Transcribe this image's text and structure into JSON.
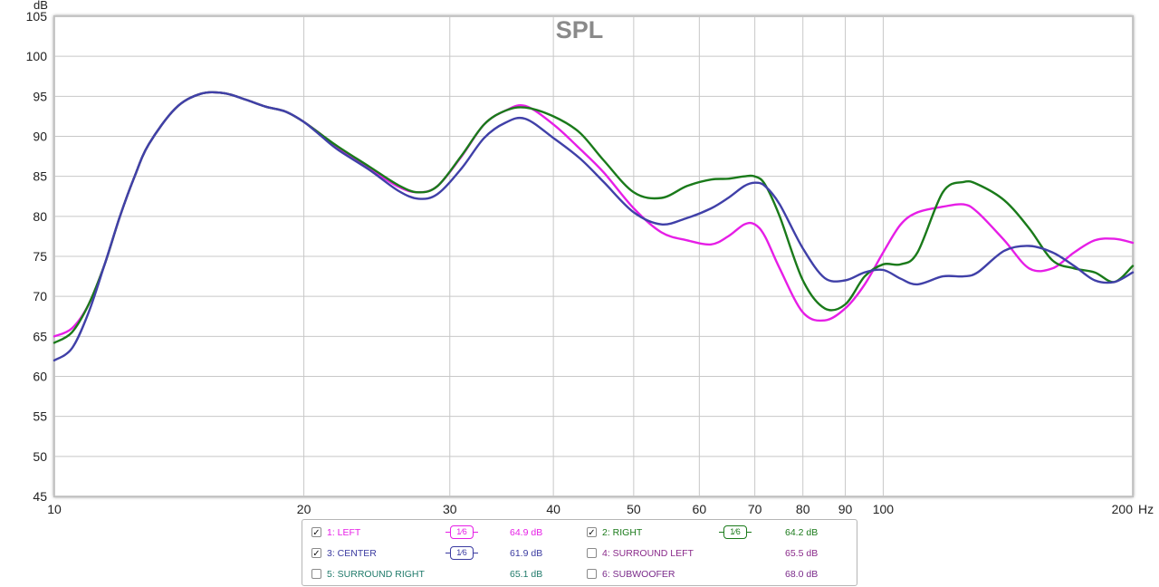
{
  "chart_data": {
    "type": "line",
    "title": "SPL",
    "ylabel": "dB",
    "xunit": "Hz",
    "xscale": "log",
    "xlim": [
      10,
      200
    ],
    "ylim": [
      45,
      105
    ],
    "grid": true,
    "xticks": [
      10,
      20,
      30,
      40,
      50,
      60,
      70,
      80,
      90,
      100,
      200
    ],
    "xtick_labels": [
      "10",
      "20",
      "30",
      "40",
      "50",
      "60",
      "70",
      "80",
      "90",
      "100",
      "200"
    ],
    "yticks": [
      45,
      50,
      55,
      60,
      65,
      70,
      75,
      80,
      85,
      90,
      95,
      100,
      105
    ],
    "series": [
      {
        "name": "1: LEFT",
        "color": "#e61ee6",
        "x": [
          10,
          10.5,
          11,
          11.5,
          12,
          12.5,
          13,
          14,
          15,
          16,
          17,
          18,
          19,
          20,
          21,
          22,
          24,
          26,
          27.5,
          29,
          31,
          33,
          35,
          37,
          40,
          43,
          46,
          50,
          54,
          58,
          62,
          65,
          68,
          70,
          72,
          75,
          80,
          85,
          90,
          95,
          100,
          105,
          110,
          118,
          125,
          130,
          140,
          150,
          160,
          170,
          180,
          190,
          200
        ],
        "y": [
          65,
          66,
          69,
          74,
          80,
          85,
          89,
          93.5,
          95.3,
          95.4,
          94.6,
          93.7,
          93.1,
          91.8,
          90.2,
          88.5,
          86.0,
          83.7,
          83.0,
          83.8,
          87.5,
          91.5,
          93.2,
          93.8,
          91.5,
          88.5,
          85.5,
          81.0,
          78.0,
          77.0,
          76.5,
          77.5,
          79.0,
          79.0,
          77.5,
          73.5,
          68.0,
          67.0,
          68.5,
          71.5,
          75.5,
          79.0,
          80.5,
          81.2,
          81.5,
          80.5,
          77.0,
          73.5,
          73.5,
          75.5,
          77.0,
          77.2,
          76.7
        ]
      },
      {
        "name": "2: RIGHT",
        "color": "#1a7a1a",
        "x": [
          10,
          10.5,
          11,
          11.5,
          12,
          12.5,
          13,
          14,
          15,
          16,
          17,
          18,
          19,
          20,
          21,
          22,
          24,
          26,
          27.5,
          29,
          31,
          33,
          35,
          37,
          40,
          43,
          46,
          50,
          54,
          58,
          62,
          65,
          68,
          70,
          72,
          75,
          80,
          85,
          90,
          95,
          100,
          105,
          110,
          118,
          125,
          130,
          140,
          150,
          160,
          170,
          180,
          190,
          200
        ],
        "y": [
          64.2,
          65.5,
          69,
          74,
          80,
          85,
          89,
          93.5,
          95.3,
          95.4,
          94.6,
          93.7,
          93.1,
          91.8,
          90.2,
          88.7,
          86.2,
          83.9,
          83.0,
          83.8,
          87.6,
          91.5,
          93.2,
          93.6,
          92.5,
          90.5,
          87.0,
          83.0,
          82.3,
          83.8,
          84.6,
          84.7,
          85.0,
          85.0,
          84.0,
          80.0,
          72.0,
          68.5,
          69.0,
          72.5,
          74.0,
          74.0,
          75.5,
          83.0,
          84.3,
          84.0,
          82.0,
          78.5,
          74.5,
          73.5,
          73.0,
          71.8,
          73.8
        ]
      },
      {
        "name": "3: CENTER",
        "color": "#4040a8",
        "x": [
          10,
          10.5,
          11,
          11.5,
          12,
          12.5,
          13,
          14,
          15,
          16,
          17,
          18,
          19,
          20,
          21,
          22,
          24,
          26,
          27.5,
          29,
          31,
          33,
          35,
          37,
          40,
          43,
          46,
          50,
          54,
          58,
          62,
          65,
          68,
          70,
          72,
          75,
          80,
          85,
          90,
          95,
          100,
          105,
          110,
          118,
          125,
          130,
          140,
          150,
          160,
          170,
          180,
          190,
          200
        ],
        "y": [
          62,
          63.5,
          68,
          74,
          80,
          85,
          89,
          93.5,
          95.3,
          95.4,
          94.6,
          93.7,
          93.1,
          91.8,
          90.0,
          88.3,
          85.8,
          83.2,
          82.2,
          82.8,
          86.0,
          89.8,
          91.7,
          92.2,
          89.8,
          87.3,
          84.3,
          80.5,
          79.0,
          79.8,
          81.0,
          82.3,
          83.8,
          84.2,
          83.8,
          81.5,
          76.0,
          72.3,
          72.0,
          73.0,
          73.3,
          72.2,
          71.5,
          72.5,
          72.5,
          73.0,
          75.7,
          76.3,
          75.5,
          73.8,
          72.0,
          71.8,
          73.0
        ]
      }
    ]
  },
  "legend": {
    "items": [
      {
        "label": "1: LEFT",
        "checked": true,
        "smoothing": "1⁄6",
        "value": "64.9 dB",
        "color": "#e61ee6"
      },
      {
        "label": "2: RIGHT",
        "checked": true,
        "smoothing": "1⁄6",
        "value": "64.2 dB",
        "color": "#1a7a1a"
      },
      {
        "label": "3: CENTER",
        "checked": true,
        "smoothing": "1⁄6",
        "value": "61.9 dB",
        "color": "#3a3aa0"
      },
      {
        "label": "4: SURROUND LEFT",
        "checked": false,
        "value": "65.5 dB",
        "color": "#8a2a8a"
      },
      {
        "label": "5: SURROUND RIGHT",
        "checked": false,
        "value": "65.1 dB",
        "color": "#1f7a6a"
      },
      {
        "label": "6: SUBWOOFER",
        "checked": false,
        "value": "68.0 dB",
        "color": "#7a2a8a"
      }
    ],
    "check_mark": "✓"
  }
}
